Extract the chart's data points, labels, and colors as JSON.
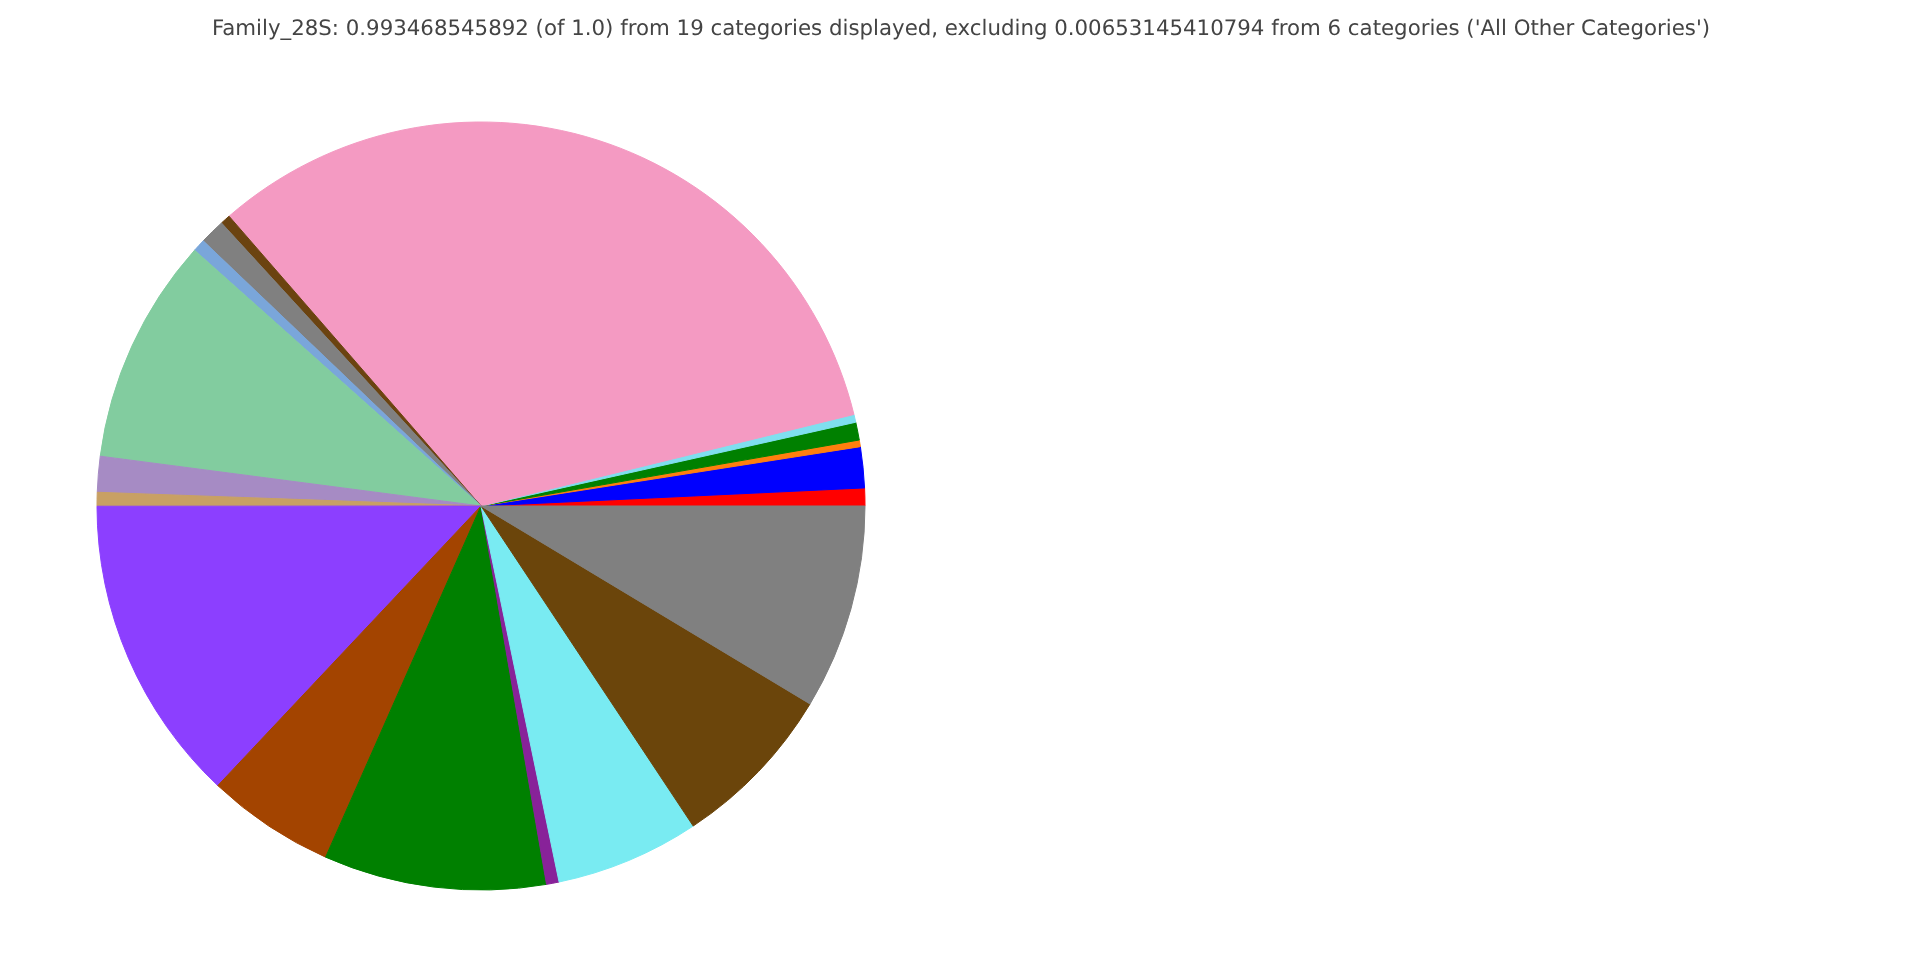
{
  "chart_data": {
    "type": "pie",
    "title": "Family_28S: 0.993468545892 (of 1.0) from 19 categories displayed, excluding 0.00653145410794 from 6 categories ('All Other Categories')",
    "categories": [
      null,
      null,
      null,
      null,
      null,
      null,
      null,
      null,
      null,
      null,
      null,
      null,
      null,
      null,
      null,
      null,
      null,
      null,
      null
    ],
    "values": [
      0.75,
      1.72,
      0.28,
      0.75,
      0.33,
      32.56,
      0.42,
      1.06,
      0.53,
      9.53,
      1.5,
      0.58,
      12.97,
      5.39,
      9.36,
      0.53,
      6.06,
      7.06,
      8.62
    ],
    "colors": [
      "#ff0000",
      "#0000ff",
      "#ff7f0e",
      "#008000",
      "#7fdfef",
      "#f49ac2",
      "#6b4310",
      "#808080",
      "#7aa6da",
      "#82cc9f",
      "#a68bc4",
      "#c8a064",
      "#8c3fff",
      "#a34400",
      "#008000",
      "#882299",
      "#79ebf2",
      "#6b450b",
      "#808080"
    ]
  }
}
